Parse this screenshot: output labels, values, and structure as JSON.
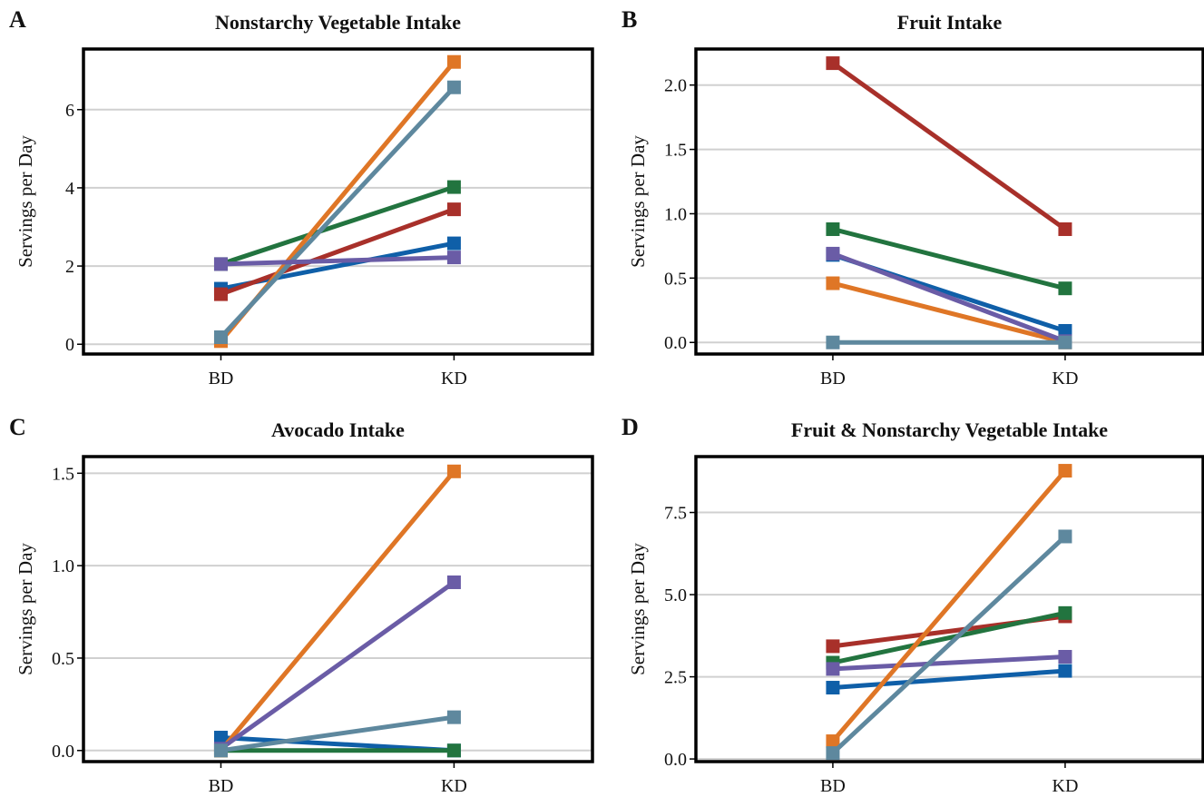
{
  "colors": {
    "blue": "#0f5fa8",
    "red": "#a8302a",
    "green": "#22743f",
    "purple": "#6a5ca6",
    "orange": "#df7626",
    "teal": "#5e889e"
  },
  "chart_data": [
    {
      "letter": "A",
      "type": "line",
      "title": "Nonstarchy Vegetable Intake",
      "xlabel": "",
      "ylabel": "Servings per Day",
      "categories": [
        "BD",
        "KD"
      ],
      "ylim": [
        -0.25,
        7.55
      ],
      "yticks": [
        0,
        2,
        4,
        6
      ],
      "ytick_labels": [
        "0",
        "2",
        "4",
        "6"
      ],
      "grid": true,
      "series": [
        {
          "color": "blue",
          "values": [
            1.42,
            2.58
          ]
        },
        {
          "color": "red",
          "values": [
            1.28,
            3.45
          ]
        },
        {
          "color": "green",
          "values": [
            2.05,
            4.02
          ]
        },
        {
          "color": "orange",
          "values": [
            0.08,
            7.22
          ]
        },
        {
          "color": "teal",
          "values": [
            0.18,
            6.57
          ]
        },
        {
          "color": "purple",
          "values": [
            2.05,
            2.22
          ]
        }
      ]
    },
    {
      "letter": "B",
      "type": "line",
      "title": "Fruit Intake",
      "xlabel": "",
      "ylabel": "Servings per Day",
      "categories": [
        "BD",
        "KD"
      ],
      "ylim": [
        -0.09,
        2.28
      ],
      "yticks": [
        0,
        0.5,
        1,
        1.5,
        2
      ],
      "ytick_labels": [
        "0.0",
        "0.5",
        "1.0",
        "1.5",
        "2.0"
      ],
      "grid": true,
      "series": [
        {
          "color": "red",
          "values": [
            2.17,
            0.88
          ]
        },
        {
          "color": "green",
          "values": [
            0.88,
            0.42
          ]
        },
        {
          "color": "blue",
          "values": [
            0.68,
            0.09
          ]
        },
        {
          "color": "orange",
          "values": [
            0.46,
            0.0
          ]
        },
        {
          "color": "purple",
          "values": [
            0.69,
            0.01
          ]
        },
        {
          "color": "teal",
          "values": [
            0.0,
            0.0
          ]
        }
      ]
    },
    {
      "letter": "C",
      "type": "line",
      "title": "Avocado Intake",
      "xlabel": "",
      "ylabel": "Servings per Day",
      "categories": [
        "BD",
        "KD"
      ],
      "ylim": [
        -0.06,
        1.59
      ],
      "yticks": [
        0,
        0.5,
        1,
        1.5
      ],
      "ytick_labels": [
        "0.0",
        "0.5",
        "1.0",
        "1.5"
      ],
      "grid": true,
      "series": [
        {
          "color": "blue",
          "values": [
            0.07,
            0.0
          ]
        },
        {
          "color": "green",
          "values": [
            0.0,
            0.0
          ]
        },
        {
          "color": "orange",
          "values": [
            0.0,
            1.51
          ]
        },
        {
          "color": "purple",
          "values": [
            0.01,
            0.91
          ]
        },
        {
          "color": "teal",
          "values": [
            0.0,
            0.18
          ]
        }
      ]
    },
    {
      "letter": "D",
      "type": "line",
      "title": "Fruit & Nonstarchy Vegetable Intake",
      "xlabel": "",
      "ylabel": "Servings per Day",
      "categories": [
        "BD",
        "KD"
      ],
      "ylim": [
        -0.08,
        9.2
      ],
      "yticks": [
        0,
        2.5,
        5,
        7.5
      ],
      "ytick_labels": [
        "0.0",
        "2.5",
        "5.0",
        "7.5"
      ],
      "grid": true,
      "series": [
        {
          "color": "red",
          "values": [
            3.43,
            4.34
          ]
        },
        {
          "color": "green",
          "values": [
            2.93,
            4.44
          ]
        },
        {
          "color": "purple",
          "values": [
            2.74,
            3.11
          ]
        },
        {
          "color": "blue",
          "values": [
            2.17,
            2.68
          ]
        },
        {
          "color": "orange",
          "values": [
            0.54,
            8.77
          ]
        },
        {
          "color": "teal",
          "values": [
            0.18,
            6.77
          ]
        }
      ]
    }
  ]
}
